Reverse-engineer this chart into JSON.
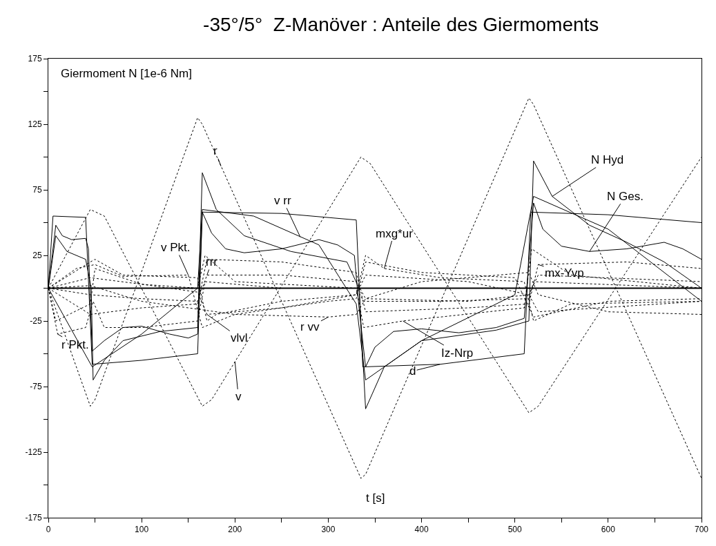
{
  "chart_data": {
    "type": "line",
    "title": "-35°/5°  Z-Manöver : Anteile des Giermoments",
    "ylabel": "Giermoment N [1e-6 Nm]",
    "xlabel": "t [s]",
    "xlim": [
      0,
      700
    ],
    "ylim": [
      -175,
      175
    ],
    "xticks": [
      0,
      {
        "value": 50,
        "label": null
      },
      100,
      {
        "value": 150,
        "label": null
      },
      200,
      {
        "value": 250,
        "label": null
      },
      300,
      {
        "value": 350,
        "label": null
      },
      400,
      {
        "value": 450,
        "label": null
      },
      500,
      {
        "value": 550,
        "label": null
      },
      600,
      {
        "value": 650,
        "label": null
      },
      700
    ],
    "yticks": [
      -175,
      {
        "value": -150,
        "label": null
      },
      -125,
      {
        "value": -100,
        "label": null
      },
      -75,
      {
        "value": -50,
        "label": null
      },
      -25,
      {
        "value": 0,
        "label": null
      },
      25,
      {
        "value": 50,
        "label": null
      },
      75,
      {
        "value": 100,
        "label": null
      },
      125,
      {
        "value": 150,
        "label": null
      },
      175
    ],
    "marker": "none",
    "ref_lines": [
      {
        "axis": "y",
        "value": 0,
        "color": "#000000"
      }
    ],
    "series": [
      {
        "color": "#000000",
        "line_style": "solid",
        "x": [
          0,
          8,
          15,
          25,
          40,
          43,
          47,
          60,
          80,
          100,
          130,
          150,
          160,
          165,
          175,
          190,
          210,
          250,
          290,
          310,
          328,
          333,
          340,
          350,
          370,
          400,
          440,
          480,
          510,
          515,
          520,
          530,
          550,
          580,
          620,
          660,
          680,
          700
        ],
        "values": [
          0,
          48,
          40,
          37,
          38,
          30,
          -48,
          -40,
          -30,
          -29,
          -35,
          -38,
          -35,
          58,
          42,
          30,
          27,
          30,
          37,
          33,
          25,
          -15,
          -60,
          -45,
          -33,
          -31,
          -34,
          -30,
          -23,
          20,
          65,
          45,
          32,
          28,
          30,
          35,
          30,
          22
        ]
      },
      {
        "color": "#000000",
        "line_style": "solid",
        "x": [
          0,
          8,
          20,
          40,
          46,
          48,
          60,
          80,
          120,
          160,
          165,
          180,
          210,
          260,
          320,
          333,
          340,
          360,
          400,
          480,
          515,
          520,
          540,
          580,
          620,
          660,
          700
        ],
        "values": [
          0,
          40,
          28,
          22,
          0,
          -70,
          -55,
          -40,
          -33,
          -30,
          88,
          60,
          40,
          28,
          20,
          0,
          -92,
          -60,
          -40,
          -32,
          -25,
          97,
          70,
          48,
          35,
          20,
          0
        ]
      },
      {
        "color": "#000000",
        "line_style": "solid",
        "x": [
          0,
          5,
          40,
          47,
          100,
          160,
          165,
          250,
          330,
          337,
          420,
          510,
          517,
          600,
          700
        ],
        "values": [
          0,
          55,
          54,
          -58,
          -55,
          -50,
          58,
          57,
          52,
          -60,
          -58,
          -50,
          58,
          56,
          50
        ]
      },
      {
        "color": "#000000",
        "line_style": "solid",
        "x": [
          0,
          47,
          100,
          160,
          165,
          220,
          290,
          330,
          340,
          400,
          500,
          520,
          600,
          700
        ],
        "values": [
          0,
          -60,
          -35,
          0,
          60,
          55,
          33,
          -12,
          -70,
          -40,
          -5,
          70,
          45,
          -10
        ]
      },
      {
        "color": "#000000",
        "line_style": "dotted",
        "x": [
          0,
          45,
          50,
          160,
          165,
          335,
          340,
          515,
          520,
          700
        ],
        "values": [
          0,
          -90,
          -85,
          130,
          125,
          -145,
          -142,
          145,
          140,
          -145
        ]
      },
      {
        "color": "#000000",
        "line_style": "dotted",
        "x": [
          0,
          45,
          60,
          165,
          175,
          335,
          345,
          515,
          525,
          700
        ],
        "values": [
          0,
          60,
          55,
          -90,
          -85,
          100,
          95,
          -95,
          -90,
          100
        ]
      },
      {
        "color": "#000000",
        "line_style": "dotted",
        "x": [
          0,
          45,
          50,
          80,
          160,
          170,
          180,
          250,
          330,
          340,
          360,
          420,
          510,
          520,
          560,
          700
        ],
        "values": [
          0,
          20,
          22,
          10,
          8,
          -25,
          -20,
          -10,
          -5,
          25,
          15,
          8,
          5,
          -25,
          -12,
          -10
        ]
      },
      {
        "color": "#000000",
        "line_style": "dotted",
        "x": [
          0,
          30,
          50,
          80,
          150,
          165,
          200,
          300,
          330,
          340,
          400,
          500,
          520,
          600,
          700
        ],
        "values": [
          0,
          15,
          18,
          9,
          10,
          -30,
          -20,
          -10,
          -8,
          20,
          12,
          8,
          -22,
          -10,
          -8
        ]
      },
      {
        "color": "#000000",
        "line_style": "dotted",
        "x": [
          0,
          45,
          100,
          160,
          170,
          250,
          330,
          340,
          450,
          515,
          525,
          700
        ],
        "values": [
          0,
          -5,
          -8,
          -10,
          10,
          10,
          5,
          -8,
          -10,
          -5,
          10,
          5
        ]
      },
      {
        "color": "#000000",
        "line_style": "dotted",
        "x": [
          0,
          45,
          100,
          160,
          170,
          250,
          330,
          340,
          450,
          515,
          525,
          620,
          700
        ],
        "values": [
          0,
          -20,
          -15,
          -12,
          22,
          20,
          12,
          -18,
          -15,
          -12,
          18,
          20,
          15
        ]
      },
      {
        "color": "#000000",
        "line_style": "dotted",
        "x": [
          0,
          45,
          100,
          160,
          170,
          250,
          330,
          340,
          450,
          515,
          525,
          700
        ],
        "values": [
          0,
          8,
          3,
          -3,
          -20,
          -15,
          -5,
          10,
          5,
          -5,
          -18,
          -10
        ]
      },
      {
        "color": "#000000",
        "line_style": "dotted",
        "x": [
          0,
          45,
          100,
          200,
          300,
          330,
          340,
          400,
          515,
          525,
          600,
          700
        ],
        "values": [
          0,
          2,
          -10,
          -20,
          -22,
          -20,
          -8,
          5,
          12,
          -5,
          -18,
          -20
        ]
      },
      {
        "color": "#000000",
        "line_style": "dotted",
        "x": [
          0,
          8,
          45,
          50,
          100,
          160,
          168,
          200,
          330,
          338,
          380,
          420,
          510,
          518,
          560,
          700
        ],
        "values": [
          0,
          -25,
          -12,
          15,
          3,
          0,
          25,
          5,
          0,
          -30,
          -25,
          -22,
          -15,
          30,
          10,
          0
        ]
      },
      {
        "color": "#000000",
        "line_style": "dotted",
        "x": [
          0,
          10,
          40,
          48,
          60,
          100,
          160,
          168,
          250,
          330,
          338,
          420,
          515,
          520,
          700
        ],
        "values": [
          0,
          -35,
          -30,
          -10,
          -30,
          -30,
          -25,
          5,
          0,
          0,
          -10,
          -10,
          -8,
          5,
          0
        ]
      }
    ],
    "annotations": [
      {
        "text": "r",
        "x": 185,
        "y": 93
      },
      {
        "text": "v rr",
        "x": 270,
        "y": 39
      },
      {
        "text": "N Hyd",
        "x": 540,
        "y": 70
      },
      {
        "text": "N Ges.",
        "x": 580,
        "y": 28
      },
      {
        "text": "mxg*ur",
        "x": 360,
        "y": 15
      },
      {
        "text": "v Pkt.",
        "x": 150,
        "y": 10
      },
      {
        "text": "rrr",
        "x": 170,
        "y": 10
      },
      {
        "text": "mx-Yvp",
        "x": 525,
        "y": 18
      },
      {
        "text": "vlvl",
        "x": 170,
        "y": -20
      },
      {
        "text": "r vv",
        "x": 300,
        "y": -22
      },
      {
        "text": "Iz-Nrp",
        "x": 380,
        "y": -25
      },
      {
        "text": "d",
        "x": 420,
        "y": -58
      },
      {
        "text": "v",
        "x": 200,
        "y": -56
      },
      {
        "text": "r Pkt.",
        "x": 10,
        "y": -35
      }
    ]
  }
}
